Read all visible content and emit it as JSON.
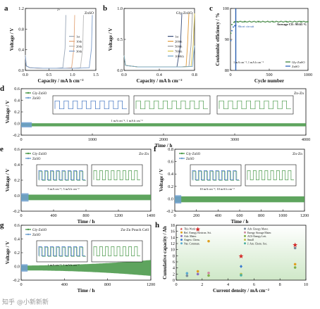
{
  "chart_data": [
    {
      "id": "a",
      "type": "line",
      "panel_label": "a",
      "corner_label": "ZnSO",
      "inset_sup": "2+",
      "xlabel": "Capacity / mA h cm⁻²",
      "ylabel": "Voltage / V",
      "xticks": [
        "0.0",
        "0.5",
        "1.0",
        "1.5"
      ],
      "yticks": [
        "0.0",
        "0.4",
        "0.8",
        "1.2"
      ],
      "xlim": [
        0,
        1.6
      ],
      "ylim": [
        0,
        1.4
      ],
      "series": [
        {
          "name": "1st",
          "color": "#9aa7b8",
          "x": [
            0,
            0.02,
            0.1,
            0.3,
            0.5,
            0.7,
            0.85,
            0.9,
            0.92
          ],
          "y": [
            0.35,
            0.1,
            0.06,
            0.05,
            0.05,
            0.05,
            0.06,
            0.5,
            1.25
          ]
        },
        {
          "name": "10th",
          "color": "#e3a67a",
          "x": [
            0,
            0.02,
            0.1,
            0.3,
            0.5,
            0.7,
            0.9,
            1.05,
            1.1,
            1.12
          ],
          "y": [
            0.3,
            0.1,
            0.06,
            0.05,
            0.05,
            0.05,
            0.05,
            0.06,
            0.5,
            1.25
          ]
        },
        {
          "name": "20th",
          "color": "#b7b7b7",
          "x": [
            0,
            0.02,
            0.1,
            0.4,
            0.8,
            1.1,
            1.25,
            1.3,
            1.32
          ],
          "y": [
            0.3,
            0.1,
            0.06,
            0.05,
            0.05,
            0.05,
            0.06,
            0.5,
            1.25
          ]
        },
        {
          "name": "30th",
          "color": "#7a9bc9",
          "x": [
            0,
            0.02,
            0.1,
            0.4,
            0.8,
            1.2,
            1.45,
            1.5,
            1.52
          ],
          "y": [
            0.3,
            0.1,
            0.06,
            0.05,
            0.05,
            0.05,
            0.06,
            0.5,
            1.25
          ]
        }
      ]
    },
    {
      "id": "b",
      "type": "line",
      "panel_label": "b",
      "corner_label": "Gly-ZnSO",
      "xlabel": "Capacity / mA h cm⁻²",
      "ylabel": "Voltage / V",
      "xticks": [
        "0.0",
        "0.4",
        "0.8"
      ],
      "yticks": [
        "0.0",
        "0.5",
        "1.0"
      ],
      "xlim": [
        0,
        1.0
      ],
      "ylim": [
        0,
        1.25
      ],
      "series": [
        {
          "name": "1st",
          "color": "#3a4e7a",
          "x": [
            0,
            0.02,
            0.2,
            0.5,
            0.75,
            0.8,
            0.82
          ],
          "y": [
            0.3,
            0.1,
            0.07,
            0.07,
            0.07,
            0.5,
            1.15
          ]
        },
        {
          "name": "200th",
          "color": "#e09a3a",
          "x": [
            0,
            0.02,
            0.2,
            0.5,
            0.8,
            0.88,
            0.9,
            0.92
          ],
          "y": [
            0.3,
            0.1,
            0.07,
            0.07,
            0.07,
            0.08,
            0.5,
            1.15
          ]
        },
        {
          "name": "500th",
          "color": "#9a9a9a",
          "x": [
            0,
            0.02,
            0.2,
            0.5,
            0.8,
            0.92,
            0.95,
            0.97
          ],
          "y": [
            0.3,
            0.1,
            0.07,
            0.07,
            0.07,
            0.08,
            0.5,
            1.15
          ]
        },
        {
          "name": "700th",
          "color": "#d8c34a",
          "x": [
            0,
            0.02,
            0.2,
            0.5,
            0.8,
            0.95,
            0.98,
            1.0
          ],
          "y": [
            0.3,
            0.1,
            0.07,
            0.07,
            0.07,
            0.08,
            0.5,
            1.15
          ]
        },
        {
          "name": "1000th",
          "color": "#6fa3c8",
          "x": [
            0,
            0.02,
            0.2,
            0.5,
            0.8,
            0.97,
            1.0
          ],
          "y": [
            0.3,
            0.1,
            0.07,
            0.07,
            0.07,
            0.08,
            0.5
          ]
        }
      ]
    },
    {
      "id": "c",
      "type": "scatter",
      "panel_label": "c",
      "xlabel": "Cycle number",
      "ylabel": "Coulombic efficiency / %",
      "xticks": [
        "0",
        "500",
        "1000"
      ],
      "yticks": [
        "80",
        "90",
        "100"
      ],
      "xlim": [
        0,
        1100
      ],
      "ylim": [
        80,
        105
      ],
      "annotations": [
        "Average CE: 99.65 %",
        "Short circuit",
        "1 mA cm⁻², 1 mA h cm⁻²"
      ],
      "series": [
        {
          "name": "Gly-ZnSO",
          "color": "#4a8c4a",
          "x": [
            5,
            20,
            50,
            100,
            200,
            400,
            600,
            800,
            1000,
            1100
          ],
          "y": [
            95,
            98.5,
            99.4,
            99.6,
            99.65,
            99.65,
            99.7,
            99.65,
            99.7,
            99.65
          ]
        },
        {
          "name": "ZnSO",
          "color": "#3a6fbf",
          "x": [
            5,
            20,
            40,
            60,
            75
          ],
          "y": [
            92,
            96,
            97.5,
            98,
            98.2
          ]
        }
      ]
    },
    {
      "id": "d",
      "type": "line",
      "panel_label": "d",
      "corner_label": "Zn-Zn",
      "xlabel": "Time / h",
      "ylabel": "Voltage / V",
      "xticks": [
        "0",
        "1000",
        "2000",
        "3000",
        "4000"
      ],
      "yticks": [
        "-0.2",
        "0.0",
        "0.2",
        "0.4",
        "0.6"
      ],
      "xlim": [
        0,
        4000
      ],
      "ylim": [
        -0.2,
        0.7
      ],
      "legend": [
        "Gly-ZnSO",
        "ZnSO"
      ],
      "inset_note": "1 mA cm⁻², 1 mA h cm⁻²",
      "series": [
        {
          "name": "Gly-ZnSO",
          "color": "#4c9a4c",
          "amplitude": 0.03,
          "x_end": 4000
        },
        {
          "name": "ZnSO",
          "color": "#6f9fd0",
          "amplitude": 0.05,
          "x_end": 150
        }
      ]
    },
    {
      "id": "e",
      "type": "line",
      "panel_label": "e",
      "corner_label": "Zn-Zn",
      "xlabel": "Time / h",
      "ylabel": "Voltage / V",
      "xticks": [
        "0",
        "400",
        "800",
        "1200",
        "1400"
      ],
      "yticks": [
        "-0.2",
        "0.0",
        "0.2",
        "0.4",
        "0.6"
      ],
      "xlim": [
        0,
        1400
      ],
      "ylim": [
        -0.2,
        0.7
      ],
      "legend": [
        "Gly-ZnSO",
        "ZnSO"
      ],
      "inset_note": "5 mA cm⁻², 5 mA h cm⁻²",
      "series": [
        {
          "name": "Gly-ZnSO",
          "color": "#4c9a4c",
          "amplitude": 0.04,
          "x_end": 1400
        },
        {
          "name": "ZnSO",
          "color": "#6f9fd0",
          "amplitude": 0.06,
          "x_end": 80
        }
      ]
    },
    {
      "id": "f",
      "type": "line",
      "panel_label": "f",
      "corner_label": "Zn-Zn",
      "xlabel": "Time / h",
      "ylabel": "Voltage / V",
      "xticks": [
        "0",
        "200",
        "400",
        "600",
        "800",
        "1000",
        "1200"
      ],
      "yticks": [
        "-0.2",
        "0.0",
        "0.2",
        "0.4",
        "0.6",
        "0.8"
      ],
      "xlim": [
        0,
        1200
      ],
      "ylim": [
        -0.2,
        0.85
      ],
      "legend": [
        "Gly-ZnSO",
        "ZnSO"
      ],
      "inset_note": "10 mA cm⁻², 10 mA h cm⁻²",
      "series": [
        {
          "name": "Gly-ZnSO",
          "color": "#4c9a4c",
          "amplitude": 0.05,
          "x_end": 1200
        },
        {
          "name": "ZnSO",
          "color": "#6f9fd0",
          "amplitude": 0.07,
          "x_end": 60
        }
      ]
    },
    {
      "id": "g",
      "type": "line",
      "panel_label": "g",
      "corner_label": "Zn-Zn Pouch Cell",
      "xlabel": "Time / h",
      "ylabel": "Voltage / V",
      "xticks": [
        "0",
        "400",
        "800",
        "1200"
      ],
      "yticks": [
        "-0.2",
        "0.0",
        "0.2",
        "0.4",
        "0.6"
      ],
      "xlim": [
        0,
        1200
      ],
      "ylim": [
        -0.2,
        0.7
      ],
      "legend": [
        "Gly-ZnSO",
        "ZnSO"
      ],
      "inset_note": "1 mA cm⁻², 1 mA h cm⁻²",
      "series": [
        {
          "name": "Gly-ZnSO",
          "color": "#4c9a4c",
          "amplitude": 0.04,
          "x_end": 1200,
          "growth": 0.09
        },
        {
          "name": "ZnSO",
          "color": "#6f9fd0",
          "amplitude": 0.06,
          "x_end": 60
        }
      ]
    },
    {
      "id": "h",
      "type": "scatter",
      "panel_label": "h",
      "xlabel": "Current density / mA cm⁻²",
      "ylabel": "Cumulative capacity / Ah",
      "xticks": [
        "0",
        "2",
        "4",
        "6",
        "8",
        "10"
      ],
      "yticks": [
        "0",
        "2",
        "4",
        "6",
        "8",
        "10",
        "12",
        "14",
        "16",
        "18"
      ],
      "xlim": [
        -1,
        11
      ],
      "ylim": [
        -1,
        19
      ],
      "legend_entries": [
        {
          "name": "This Work",
          "color": "#d42a2a",
          "marker": "star"
        },
        {
          "name": "Ref. Energy Environ. Sci.",
          "color": "#e0a020",
          "marker": "circle"
        },
        {
          "name": "Adv. Mater.",
          "color": "#8a6fc0",
          "marker": "circle"
        },
        {
          "name": "Angew. Chem.",
          "color": "#3a7ad0",
          "marker": "diamond"
        },
        {
          "name": "Nat. Commun.",
          "color": "#5aaad0",
          "marker": "circle"
        },
        {
          "name": "Adv. Energy Mater.",
          "color": "#7a8a9a",
          "marker": "circle"
        },
        {
          "name": "Energy Storage Mater.",
          "color": "#d08aa0",
          "marker": "circle"
        },
        {
          "name": "ACS Energy Lett.",
          "color": "#7fb04a",
          "marker": "circle"
        },
        {
          "name": "Small",
          "color": "#c0c04a",
          "marker": "circle"
        },
        {
          "name": "J. Am. Chem. Soc.",
          "color": "#4ab0a0",
          "marker": "circle"
        }
      ],
      "points": [
        {
          "x": 1,
          "y": 17.5,
          "color": "#d42a2a",
          "marker": "star"
        },
        {
          "x": 5,
          "y": 7.7,
          "color": "#d42a2a",
          "marker": "star"
        },
        {
          "x": 10,
          "y": 11.8,
          "color": "#d42a2a",
          "marker": "star"
        },
        {
          "x": 1,
          "y": 2.2,
          "color": "#e0a020",
          "marker": "circle"
        },
        {
          "x": 1,
          "y": 1.2,
          "color": "#8a6fc0",
          "marker": "circle"
        },
        {
          "x": 0,
          "y": 1.5,
          "color": "#5aaad0",
          "marker": "circle"
        },
        {
          "x": 0,
          "y": 0.6,
          "color": "#7a8a9a",
          "marker": "circle"
        },
        {
          "x": 2,
          "y": 13.2,
          "color": "#e0a020",
          "marker": "circle"
        },
        {
          "x": 2,
          "y": 1.6,
          "color": "#d08aa0",
          "marker": "circle"
        },
        {
          "x": 2,
          "y": 0.7,
          "color": "#7fb04a",
          "marker": "circle"
        },
        {
          "x": 5,
          "y": 4.0,
          "color": "#3a7ad0",
          "marker": "diamond"
        },
        {
          "x": 5,
          "y": 1.2,
          "color": "#c0c04a",
          "marker": "circle"
        },
        {
          "x": 5,
          "y": 0.8,
          "color": "#4ab0a0",
          "marker": "circle"
        },
        {
          "x": 10,
          "y": 10.7,
          "color": "#7a8a9a",
          "marker": "circle"
        },
        {
          "x": 10,
          "y": 4.8,
          "color": "#e0a020",
          "marker": "circle"
        },
        {
          "x": 10,
          "y": 3.6,
          "color": "#7fb04a",
          "marker": "circle"
        }
      ]
    }
  ],
  "watermark": "知乎 @小新新新"
}
